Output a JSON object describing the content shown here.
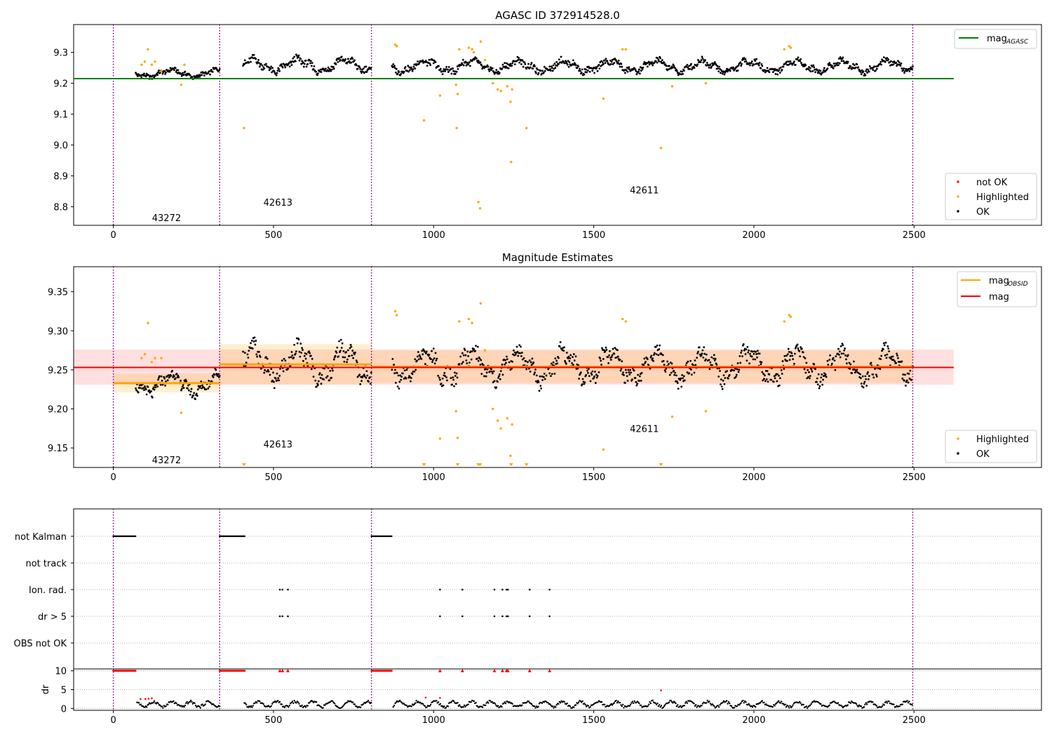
{
  "chart_data": [
    {
      "type": "scatter",
      "title": "AGASC ID 372914528.0",
      "xlim": [
        -124,
        2898
      ],
      "ylim": [
        8.74,
        9.39
      ],
      "x_ticks": [
        0,
        500,
        1000,
        1500,
        2000,
        2500
      ],
      "y_ticks": [
        8.8,
        8.9,
        9.0,
        9.1,
        9.2,
        9.3
      ],
      "y_tick_labels": [
        "8.8",
        "8.9",
        "9.0",
        "9.1",
        "9.2",
        "9.3"
      ],
      "obs_boundaries": [
        0,
        332,
        806,
        2496
      ],
      "obs_labels": [
        {
          "text": "43272",
          "x": 166,
          "y": 8.765
        },
        {
          "text": "42613",
          "x": 514,
          "y": 8.815
        },
        {
          "text": "42611",
          "x": 1658,
          "y": 8.855
        }
      ],
      "agasc_mag": 9.215,
      "agasc_mag_xrange": [
        -124,
        2624
      ],
      "legend_top": {
        "label_main": "mag",
        "label_sub": "AGASC",
        "color": "#008000",
        "position": "upper right"
      },
      "legend_bottom": [
        {
          "label": "not OK",
          "color": "#ff0000"
        },
        {
          "label": "Highlighted",
          "color": "#ffa500"
        },
        {
          "label": "OK",
          "color": "#000000"
        }
      ],
      "ok_segments": [
        {
          "x0": 70,
          "x1": 332,
          "base": 9.232,
          "amp": 0.012
        },
        {
          "x0": 405,
          "x1": 806,
          "base": 9.258,
          "amp": 0.02
        },
        {
          "x0": 870,
          "x1": 2496,
          "base": 9.255,
          "amp": 0.018
        }
      ],
      "highlighted": [
        [
          88,
          9.26
        ],
        [
          98,
          9.27
        ],
        [
          108,
          9.31
        ],
        [
          120,
          9.26
        ],
        [
          130,
          9.27
        ],
        [
          150,
          9.24
        ],
        [
          212,
          9.195
        ],
        [
          222,
          9.26
        ],
        [
          408,
          9.055
        ],
        [
          880,
          9.325
        ],
        [
          885,
          9.32
        ],
        [
          970,
          9.08
        ],
        [
          1020,
          9.16
        ],
        [
          1070,
          9.195
        ],
        [
          1072,
          9.055
        ],
        [
          1075,
          9.165
        ],
        [
          1080,
          9.31
        ],
        [
          1110,
          9.315
        ],
        [
          1120,
          9.31
        ],
        [
          1125,
          9.3
        ],
        [
          1140,
          8.815
        ],
        [
          1145,
          8.795
        ],
        [
          1147,
          9.335
        ],
        [
          1160,
          9.275
        ],
        [
          1185,
          9.2
        ],
        [
          1200,
          9.18
        ],
        [
          1210,
          9.175
        ],
        [
          1230,
          9.19
        ],
        [
          1240,
          9.14
        ],
        [
          1245,
          9.18
        ],
        [
          1242,
          8.945
        ],
        [
          1290,
          9.055
        ],
        [
          1530,
          9.15
        ],
        [
          1590,
          9.31
        ],
        [
          1600,
          9.31
        ],
        [
          1710,
          8.99
        ],
        [
          1745,
          9.19
        ],
        [
          1850,
          9.2
        ],
        [
          2095,
          9.31
        ],
        [
          2110,
          9.32
        ],
        [
          2115,
          9.315
        ]
      ]
    },
    {
      "type": "scatter",
      "title": "Magnitude Estimates",
      "xlim": [
        -124,
        2898
      ],
      "ylim": [
        9.125,
        9.382
      ],
      "x_ticks": [
        0,
        500,
        1000,
        1500,
        2000,
        2500
      ],
      "y_ticks": [
        9.15,
        9.2,
        9.25,
        9.3,
        9.35
      ],
      "y_tick_labels": [
        "9.15",
        "9.20",
        "9.25",
        "9.30",
        "9.35"
      ],
      "obs_boundaries": [
        0,
        332,
        806,
        2496
      ],
      "obs_labels": [
        {
          "text": "43272",
          "x": 166,
          "y": 9.135
        },
        {
          "text": "42613",
          "x": 514,
          "y": 9.155
        },
        {
          "text": "42611",
          "x": 1658,
          "y": 9.175
        }
      ],
      "mag": 9.253,
      "mag_band": [
        9.231,
        9.276
      ],
      "mag_xrange": [
        -124,
        2624
      ],
      "mag_obsid": [
        {
          "x0": 0,
          "x1": 332,
          "value": 9.233,
          "band": [
            9.221,
            9.245
          ]
        },
        {
          "x0": 332,
          "x1": 806,
          "value": 9.257,
          "band": [
            9.231,
            9.283
          ]
        },
        {
          "x0": 806,
          "x1": 2496,
          "value": 9.254,
          "band": [
            9.233,
            9.275
          ]
        }
      ],
      "legend_top": [
        {
          "label_main": "mag",
          "label_sub": "OBSID",
          "color": "#ffa500"
        },
        {
          "label_main": "mag",
          "label_sub": "",
          "color": "#ff0000"
        }
      ],
      "legend_bottom": [
        {
          "label": "Highlighted",
          "color": "#ffa500"
        },
        {
          "label": "OK",
          "color": "#000000"
        }
      ],
      "clipped_markers_x": [
        408,
        970,
        1075,
        1140,
        1145,
        1242,
        1290,
        1710
      ],
      "highlighted": [
        [
          88,
          9.265
        ],
        [
          98,
          9.27
        ],
        [
          108,
          9.31
        ],
        [
          120,
          9.26
        ],
        [
          130,
          9.265
        ],
        [
          150,
          9.265
        ],
        [
          212,
          9.195
        ],
        [
          880,
          9.325
        ],
        [
          885,
          9.32
        ],
        [
          1020,
          9.162
        ],
        [
          1070,
          9.197
        ],
        [
          1075,
          9.163
        ],
        [
          1080,
          9.312
        ],
        [
          1110,
          9.315
        ],
        [
          1120,
          9.31
        ],
        [
          1147,
          9.335
        ],
        [
          1160,
          9.275
        ],
        [
          1185,
          9.2
        ],
        [
          1200,
          9.185
        ],
        [
          1210,
          9.175
        ],
        [
          1230,
          9.188
        ],
        [
          1240,
          9.14
        ],
        [
          1245,
          9.18
        ],
        [
          1530,
          9.148
        ],
        [
          1590,
          9.315
        ],
        [
          1600,
          9.312
        ],
        [
          1745,
          9.19
        ],
        [
          1850,
          9.197
        ],
        [
          2095,
          9.312
        ],
        [
          2110,
          9.32
        ],
        [
          2115,
          9.318
        ]
      ]
    },
    {
      "type": "scatter",
      "title": "",
      "xlim": [
        -124,
        2898
      ],
      "x_ticks": [
        0,
        500,
        1000,
        1500,
        2000,
        2500
      ],
      "obs_boundaries": [
        0,
        332,
        806,
        2496
      ],
      "flag_rows": [
        "not Kalman",
        "not track",
        "Ion. rad.",
        "dr > 5",
        "OBS not OK"
      ],
      "flag_points": {
        "not Kalman": [
          [
            0,
            70
          ],
          [
            332,
            410
          ],
          [
            806,
            870
          ]
        ],
        "Ion. rad.": [
          520,
          528,
          545,
          1020,
          1090,
          1190,
          1215,
          1228,
          1232,
          1300,
          1362
        ],
        "dr > 5": [
          520,
          528,
          545,
          1020,
          1090,
          1190,
          1215,
          1228,
          1232,
          1300,
          1362
        ]
      },
      "dr_ylabel": "dr",
      "dr_ylim": [
        -0.5,
        10.5
      ],
      "dr_y_ticks": [
        0,
        5,
        10
      ],
      "dr_y_tick_labels": [
        "0",
        "5",
        "10"
      ],
      "dr_red_high": [
        [
          0,
          70
        ],
        [
          332,
          410
        ],
        [
          806,
          870
        ]
      ],
      "dr_red_single_x": [
        520,
        528,
        545,
        1020,
        1090,
        1190,
        1215,
        1228,
        1232,
        1300,
        1362
      ],
      "dr_red_mid": [
        [
          85,
          2.5
        ],
        [
          100,
          2.5
        ],
        [
          110,
          2.6
        ],
        [
          120,
          2.7
        ],
        [
          975,
          2.9
        ],
        [
          1020,
          2.8
        ],
        [
          1710,
          4.8
        ]
      ],
      "dr_black_segments": [
        [
          70,
          332
        ],
        [
          405,
          806
        ],
        [
          870,
          2496
        ]
      ]
    }
  ]
}
